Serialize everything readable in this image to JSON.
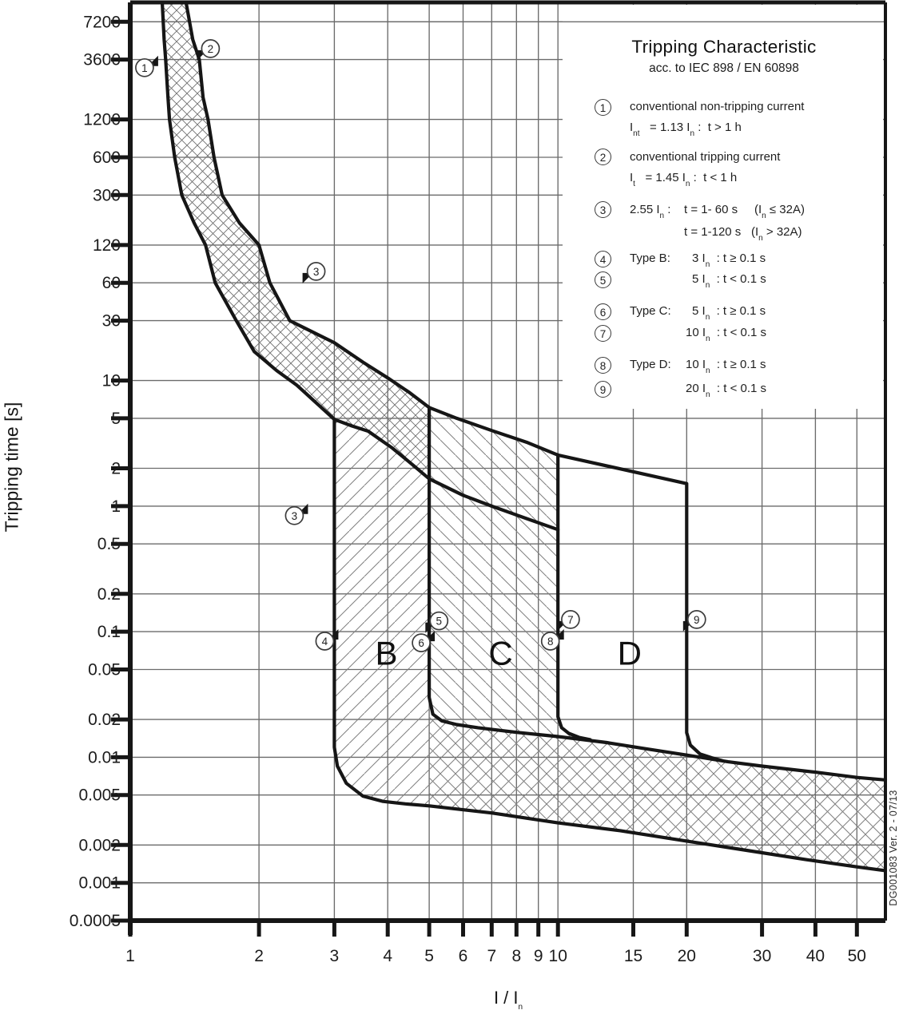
{
  "title": {
    "main": "Tripping Characteristic",
    "sub": "acc. to IEC 898 / EN 60898"
  },
  "axes": {
    "y_label": "Tripping time [s]",
    "x_label": "I / I{n}",
    "y_ticks": [
      7200,
      3600,
      1200,
      600,
      300,
      120,
      60,
      30,
      10,
      5,
      2,
      1,
      0.5,
      0.2,
      0.1,
      0.05,
      0.02,
      0.01,
      0.005,
      0.002,
      0.001,
      0.0005
    ],
    "y_tick_labels": [
      "7200",
      "3600",
      "1200",
      "600",
      "300",
      "120",
      "60",
      "30",
      "10",
      "5",
      "2",
      "1",
      "0.5",
      "0.2",
      "0.1",
      "0.05",
      "0.02",
      "0.01",
      "0.005",
      "0.002",
      "0.001",
      "0.0005"
    ],
    "x_ticks": [
      1,
      2,
      3,
      4,
      5,
      6,
      7,
      8,
      9,
      10,
      15,
      20,
      30,
      40,
      50
    ],
    "x_tick_labels": [
      "1",
      "2",
      "3",
      "4",
      "5",
      "6",
      "7",
      "8",
      "9",
      "10",
      "15",
      "20",
      "30",
      "40",
      "50"
    ]
  },
  "legend": {
    "items": [
      {
        "num": "1",
        "line1": "conventional non-tripping current",
        "line2": "I{nt}   = 1.13 I{n} :  t > 1 h"
      },
      {
        "num": "2",
        "line1": "conventional tripping current",
        "line2": "I{t}   = 1.45 I{n} :  t < 1 h"
      },
      {
        "num": "3",
        "col1": "2.55 I{n} :",
        "time1": "t = 1- 60 s",
        "cond1": "(I{n} ≤ 32A)",
        "time2": "t = 1-120 s",
        "cond2": "(I{n} > 32A)"
      },
      {
        "num": "4",
        "label": "Type B:",
        "formula": "3 I{n}  : t ≥ 0.1 s"
      },
      {
        "num": "5",
        "formula": "5 I{n}  : t < 0.1 s"
      },
      {
        "num": "6",
        "label": "Type C:",
        "formula": "5 I{n}  : t ≥ 0.1 s"
      },
      {
        "num": "7",
        "formula": "10 I{n}  : t < 0.1 s"
      },
      {
        "num": "8",
        "label": "Type D:",
        "formula": "10 I{n}  : t ≥ 0.1 s"
      },
      {
        "num": "9",
        "formula": "20 I{n}  : t < 0.1 s"
      }
    ]
  },
  "side_note": "DG001083 Ver. 2 - 07/13",
  "colors": {
    "line": "#161616",
    "grid": "#6b6b6b",
    "hatch": "#7f7f7f",
    "hatch_cross": "#6f6f6f",
    "text": "#1c1c1c"
  },
  "chart_data": {
    "type": "line",
    "title": "Tripping Characteristic acc. to IEC 898 / EN 60898",
    "xlabel": "I / In",
    "ylabel": "Tripping time [s]",
    "x_scale": "log",
    "y_scale": "log",
    "x_range": [
      1,
      58.3
    ],
    "y_range": [
      0.0005,
      10270
    ],
    "grid": true,
    "legend_position": "top-right",
    "series": [
      {
        "name": "conventional-non-tripping-1.13In",
        "points": [
          [
            1.188,
            10270
          ],
          [
            1.2,
            5200
          ],
          [
            1.21,
            3600
          ],
          [
            1.225,
            1800
          ],
          [
            1.235,
            1200
          ],
          [
            1.27,
            600
          ],
          [
            1.32,
            300
          ],
          [
            1.41,
            180
          ],
          [
            1.5,
            120
          ],
          [
            1.58,
            60
          ],
          [
            1.77,
            30
          ],
          [
            1.95,
            17
          ],
          [
            2.2,
            12
          ],
          [
            2.45,
            9.2
          ],
          [
            2.7,
            6.8
          ],
          [
            3.0,
            4.9
          ],
          [
            3.3,
            4.35
          ],
          [
            3.6,
            3.95
          ],
          [
            4.1,
            2.9
          ],
          [
            4.6,
            2.1
          ],
          [
            5.0,
            1.65
          ],
          [
            6.0,
            1.22
          ],
          [
            7.0,
            1.0
          ],
          [
            8.5,
            0.79
          ],
          [
            10.0,
            0.65
          ]
        ]
      },
      {
        "name": "conventional-tripping-1.45In",
        "points": [
          [
            1.35,
            10270
          ],
          [
            1.4,
            5200
          ],
          [
            1.45,
            3600
          ],
          [
            1.48,
            1800
          ],
          [
            1.52,
            1200
          ],
          [
            1.57,
            600
          ],
          [
            1.64,
            300
          ],
          [
            1.8,
            180
          ],
          [
            2.0,
            120
          ],
          [
            2.12,
            60
          ],
          [
            2.36,
            30
          ],
          [
            3.0,
            20
          ],
          [
            3.5,
            14
          ],
          [
            4.0,
            10.5
          ],
          [
            4.5,
            8.0
          ],
          [
            5.0,
            6.1
          ],
          [
            5.8,
            5.0
          ],
          [
            7.0,
            4.0
          ],
          [
            8.5,
            3.2
          ],
          [
            10.0,
            2.55
          ]
        ]
      },
      {
        "name": "type-b-left-3In",
        "points": [
          [
            3,
            4.9
          ],
          [
            3,
            0.012
          ]
        ]
      },
      {
        "name": "type-b-bottom-bend",
        "points": [
          [
            3,
            0.012
          ],
          [
            3.05,
            0.0085
          ],
          [
            3.2,
            0.0062
          ],
          [
            3.5,
            0.0049
          ],
          [
            3.9,
            0.00445
          ],
          [
            4.4,
            0.00425
          ],
          [
            5,
            0.0041
          ]
        ]
      },
      {
        "name": "band-bottom",
        "points": [
          [
            5,
            0.0041
          ],
          [
            7,
            0.0036
          ],
          [
            10,
            0.003
          ],
          [
            14,
            0.0026
          ],
          [
            20,
            0.00215
          ],
          [
            28,
            0.0018
          ],
          [
            38,
            0.00153
          ],
          [
            50,
            0.00134
          ],
          [
            58.3,
            0.00125
          ]
        ]
      },
      {
        "name": "type-bc-left-5In",
        "points": [
          [
            5,
            6.1
          ],
          [
            5,
            0.03
          ]
        ]
      },
      {
        "name": "type-c-bottom-bend",
        "points": [
          [
            5,
            0.03
          ],
          [
            5.1,
            0.022
          ],
          [
            5.35,
            0.0195
          ],
          [
            5.8,
            0.0182
          ],
          [
            6.5,
            0.0172
          ]
        ]
      },
      {
        "name": "band-top",
        "points": [
          [
            6.5,
            0.0172
          ],
          [
            8,
            0.0158
          ],
          [
            10,
            0.0146
          ],
          [
            13,
            0.0131
          ],
          [
            16,
            0.0117
          ],
          [
            20,
            0.0104
          ],
          [
            25,
            0.0092
          ],
          [
            30,
            0.0085
          ],
          [
            40,
            0.0076
          ],
          [
            50,
            0.0069
          ],
          [
            58.3,
            0.0066
          ]
        ]
      },
      {
        "name": "type-cd-left-10In",
        "points": [
          [
            10,
            2.55
          ],
          [
            10,
            0.021
          ]
        ]
      },
      {
        "name": "type-d-bottom-bend-10",
        "points": [
          [
            10,
            0.021
          ],
          [
            10.2,
            0.0172
          ],
          [
            10.6,
            0.0155
          ],
          [
            11.2,
            0.0144
          ],
          [
            11.9,
            0.0138
          ]
        ]
      },
      {
        "name": "type-d-top",
        "points": [
          [
            10,
            2.55
          ],
          [
            20,
            1.51
          ]
        ]
      },
      {
        "name": "type-d-right-20In",
        "points": [
          [
            20,
            1.51
          ],
          [
            20,
            0.0157
          ]
        ]
      },
      {
        "name": "type-d-bottom-bend-20",
        "points": [
          [
            20,
            0.0157
          ],
          [
            20.4,
            0.0125
          ],
          [
            21.5,
            0.0106
          ],
          [
            22.9,
            0.0099
          ],
          [
            24.2,
            0.0094
          ]
        ]
      }
    ],
    "regions": [
      {
        "label": "B",
        "x": 3.97,
        "t": 0.068
      },
      {
        "label": "C",
        "x": 7.35,
        "t": 0.068
      },
      {
        "label": "D",
        "x": 14.7,
        "t": 0.068
      }
    ],
    "markers": [
      {
        "n": "1",
        "x": 1.08,
        "t": 3100,
        "dir": "ur"
      },
      {
        "n": "2",
        "x": 1.54,
        "t": 4400,
        "dir": "dl"
      },
      {
        "n": "3",
        "x": 2.72,
        "t": 74,
        "dir": "dl"
      },
      {
        "n": "3",
        "x": 2.42,
        "t": 0.84,
        "dir": "ur"
      },
      {
        "n": "4",
        "x": 2.85,
        "t": 0.084,
        "dir": "ur"
      },
      {
        "n": "5",
        "x": 5.27,
        "t": 0.122,
        "dir": "dl"
      },
      {
        "n": "6",
        "x": 4.79,
        "t": 0.0815,
        "dir": "ur"
      },
      {
        "n": "7",
        "x": 10.7,
        "t": 0.125,
        "dir": "dl"
      },
      {
        "n": "8",
        "x": 9.6,
        "t": 0.084,
        "dir": "ur"
      },
      {
        "n": "9",
        "x": 21.1,
        "t": 0.125,
        "dir": "dl"
      }
    ]
  }
}
